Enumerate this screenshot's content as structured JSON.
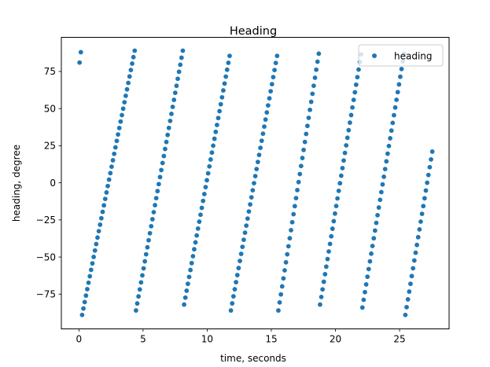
{
  "chart_data": {
    "type": "scatter",
    "title": "Heading",
    "xlabel": "time, seconds",
    "ylabel": "heading, degree",
    "xlim": [
      -1.37,
      28.86
    ],
    "ylim": [
      -98.4,
      98.0
    ],
    "xticks": [
      0,
      5,
      10,
      15,
      20,
      25
    ],
    "yticks": [
      -75,
      -50,
      -25,
      0,
      25,
      50,
      75
    ],
    "grid": false,
    "legend": {
      "placement": "top-right",
      "entries": [
        "heading"
      ]
    },
    "series_color": "#1f77b4",
    "series": [
      {
        "name": "heading",
        "segments": [
          {
            "t_start": 0.05,
            "t_end": 0.15,
            "y_start": 81,
            "y_end": 88,
            "n": 2
          },
          {
            "t_start": 0.25,
            "t_end": 4.35,
            "y_start": -89,
            "y_end": 89,
            "n": 42
          },
          {
            "t_start": 4.45,
            "t_end": 8.1,
            "y_start": -86,
            "y_end": 89,
            "n": 38
          },
          {
            "t_start": 8.2,
            "t_end": 11.75,
            "y_start": -82,
            "y_end": 85.5,
            "n": 37
          },
          {
            "t_start": 11.85,
            "t_end": 15.45,
            "y_start": -86,
            "y_end": 85.5,
            "n": 37
          },
          {
            "t_start": 15.55,
            "t_end": 18.7,
            "y_start": -86,
            "y_end": 87,
            "n": 33
          },
          {
            "t_start": 18.8,
            "t_end": 22.0,
            "y_start": -82,
            "y_end": 86.5,
            "n": 34
          },
          {
            "t_start": 22.1,
            "t_end": 25.35,
            "y_start": -84,
            "y_end": 87,
            "n": 34
          },
          {
            "t_start": 25.45,
            "t_end": 27.55,
            "y_start": -89,
            "y_end": 21,
            "n": 22
          }
        ]
      }
    ]
  }
}
